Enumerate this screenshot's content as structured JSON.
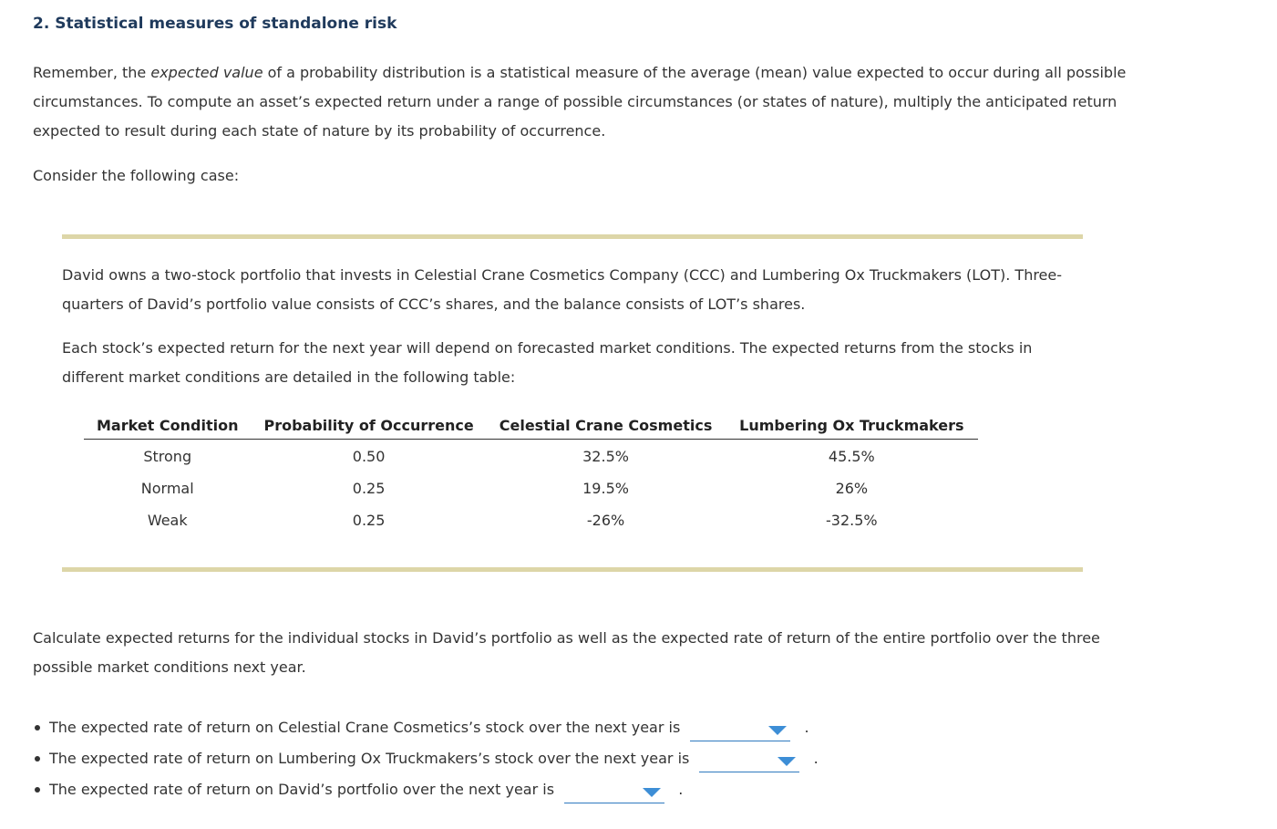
{
  "heading": "2. Statistical measures of standalone risk",
  "intro": {
    "before": "Remember, the ",
    "emphasis": "expected value",
    "after": " of a probability distribution is a statistical measure of the average (mean) value expected to occur during all possible circumstances. To compute an asset’s expected return under a range of possible circumstances (or states of nature), multiply the anticipated return expected to result during each state of nature by its probability of occurrence."
  },
  "consider": "Consider the following case:",
  "case": {
    "paragraph1": "David owns a two-stock portfolio that invests in Celestial Crane Cosmetics Company (CCC) and Lumbering Ox Truckmakers (LOT). Three-quarters of David’s portfolio value consists of CCC’s shares, and the balance consists of LOT’s shares.",
    "paragraph2": "Each stock’s expected return for the next year will depend on forecasted market conditions. The expected returns from the stocks in different market conditions are detailed in the following table:",
    "table": {
      "headers": [
        "Market Condition",
        "Probability of Occurrence",
        "Celestial Crane Cosmetics",
        "Lumbering Ox Truckmakers"
      ],
      "rows": [
        [
          "Strong",
          "0.50",
          "32.5%",
          "45.5%"
        ],
        [
          "Normal",
          "0.25",
          "19.5%",
          "26%"
        ],
        [
          "Weak",
          "0.25",
          "-26%",
          "-32.5%"
        ]
      ]
    }
  },
  "question": "Calculate expected returns for the individual stocks in David’s portfolio as well as the expected rate of return of the entire portfolio over the three possible market conditions next year.",
  "answers": [
    {
      "text": "The expected rate of return on Celestial Crane Cosmetics’s stock over the next year is",
      "selected": "",
      "end": "."
    },
    {
      "text": "The expected rate of return on Lumbering Ox Truckmakers’s stock over the next year is",
      "selected": "",
      "end": "."
    },
    {
      "text": "The expected rate of return on David’s portfolio over the next year is",
      "selected": "",
      "end": "."
    }
  ],
  "colors": {
    "heading": "#1f3a5c",
    "rule": "#ddd6a8",
    "dropdown_accent": "#3d8ed6"
  },
  "icons": [
    "dropdown-caret-icon"
  ]
}
